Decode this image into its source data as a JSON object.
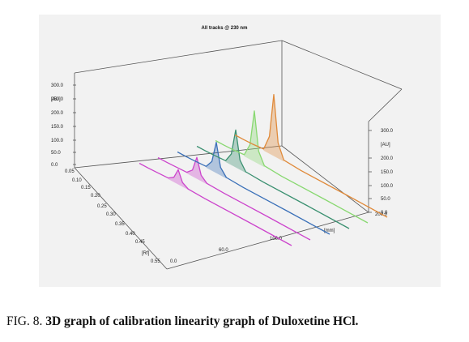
{
  "caption": {
    "prefix": "FIG. 8. ",
    "text": "3D graph of calibration linearity graph of Duloxetine HCl."
  },
  "chart_data": {
    "type": "line",
    "projection": "3d-waterfall",
    "title": "All tracks @ 230 nm",
    "x_axis": {
      "ticks": [
        "0.05",
        "0.10",
        "0.15",
        "0.20",
        "0.25",
        "0.30",
        "0.35",
        "0.40",
        "0.45",
        "0.55"
      ],
      "unit_label": "[Rf]"
    },
    "z_axis": {
      "ticks": [
        "0.0",
        "60.0",
        "100.0",
        "200.0"
      ],
      "unit_label": "[mm]"
    },
    "y_axis_left": {
      "ticks": [
        "300.0",
        "250.0",
        "200.0",
        "150.0",
        "100.0",
        "50.0",
        "0.0"
      ],
      "unit_label": "[AU]",
      "range": [
        0,
        300
      ]
    },
    "y_axis_right": {
      "ticks": [
        "300.0",
        "200.0",
        "150.0",
        "100.0",
        "50.0",
        "0.0"
      ],
      "unit_label": "[AU]"
    },
    "axis_corner_label": "200.0",
    "series_colors": [
      "#cc44cc",
      "#cc44cc",
      "#3a70b8",
      "#3a9070",
      "#88d870",
      "#e08a3a"
    ],
    "series": [
      {
        "peak_height": 55,
        "values": [
          [
            0.02,
            1
          ],
          [
            0.05,
            1
          ],
          [
            0.08,
            2
          ],
          [
            0.12,
            4
          ],
          [
            0.14,
            18
          ],
          [
            0.155,
            55
          ],
          [
            0.17,
            16
          ],
          [
            0.19,
            3
          ],
          [
            0.25,
            1
          ],
          [
            0.4,
            1
          ],
          [
            0.55,
            0
          ]
        ]
      },
      {
        "peak_height": 80,
        "values": [
          [
            0.02,
            1
          ],
          [
            0.05,
            1
          ],
          [
            0.08,
            2
          ],
          [
            0.12,
            4
          ],
          [
            0.14,
            24
          ],
          [
            0.155,
            80
          ],
          [
            0.17,
            22
          ],
          [
            0.19,
            3
          ],
          [
            0.25,
            1
          ],
          [
            0.4,
            1
          ],
          [
            0.55,
            0
          ]
        ]
      },
      {
        "peak_height": 115,
        "values": [
          [
            0.02,
            1
          ],
          [
            0.05,
            1
          ],
          [
            0.08,
            2
          ],
          [
            0.12,
            5
          ],
          [
            0.14,
            35
          ],
          [
            0.155,
            115
          ],
          [
            0.17,
            30
          ],
          [
            0.19,
            4
          ],
          [
            0.25,
            1
          ],
          [
            0.4,
            1
          ],
          [
            0.55,
            0
          ]
        ]
      },
      {
        "peak_height": 140,
        "values": [
          [
            0.02,
            1
          ],
          [
            0.05,
            1
          ],
          [
            0.08,
            2
          ],
          [
            0.12,
            5
          ],
          [
            0.14,
            42
          ],
          [
            0.155,
            140
          ],
          [
            0.17,
            36
          ],
          [
            0.19,
            4
          ],
          [
            0.25,
            1
          ],
          [
            0.4,
            1
          ],
          [
            0.55,
            0
          ]
        ]
      },
      {
        "peak_height": 190,
        "values": [
          [
            0.02,
            1
          ],
          [
            0.05,
            1
          ],
          [
            0.08,
            2
          ],
          [
            0.12,
            6
          ],
          [
            0.14,
            55
          ],
          [
            0.155,
            190
          ],
          [
            0.17,
            48
          ],
          [
            0.19,
            5
          ],
          [
            0.25,
            1
          ],
          [
            0.4,
            1
          ],
          [
            0.55,
            0
          ]
        ]
      },
      {
        "peak_height": 230,
        "values": [
          [
            0.02,
            1
          ],
          [
            0.05,
            1
          ],
          [
            0.08,
            2
          ],
          [
            0.12,
            6
          ],
          [
            0.14,
            65
          ],
          [
            0.155,
            230
          ],
          [
            0.17,
            58
          ],
          [
            0.19,
            5
          ],
          [
            0.25,
            1
          ],
          [
            0.4,
            1
          ],
          [
            0.55,
            0
          ]
        ]
      }
    ]
  }
}
